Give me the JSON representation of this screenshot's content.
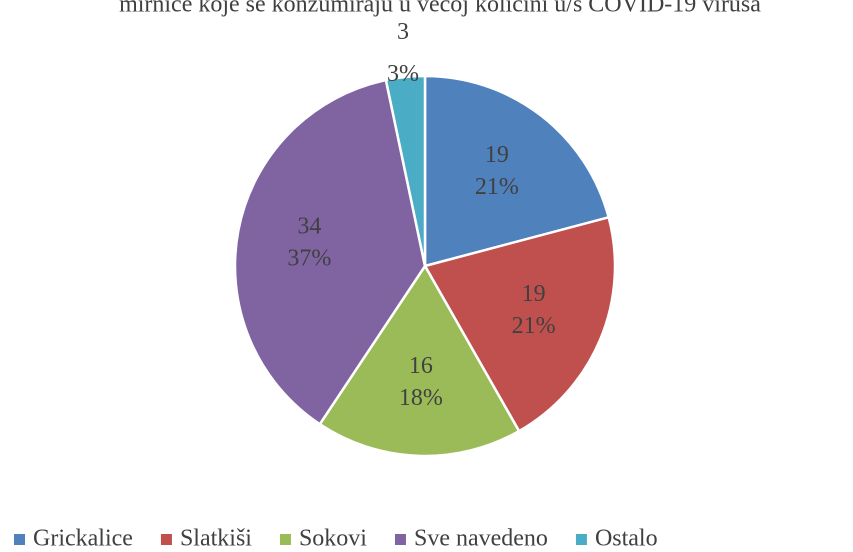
{
  "chart_data": {
    "type": "pie",
    "title": "mirnice koje se konzumiraju u većoj količini u/s COVID-19 virusa",
    "categories": [
      "Grickalice",
      "Slatkiši",
      "Sokovi",
      "Sve navedeno",
      "Ostalo"
    ],
    "values": [
      19,
      19,
      16,
      34,
      3
    ],
    "percentages": [
      21,
      21,
      18,
      37,
      3
    ],
    "percentage_labels": [
      "21%",
      "21%",
      "18%",
      "37%",
      "3%"
    ],
    "colors": [
      "#4f81bd",
      "#c0504d",
      "#9bbb59",
      "#8064a2",
      "#4bacc6"
    ],
    "legend": "bottom"
  }
}
